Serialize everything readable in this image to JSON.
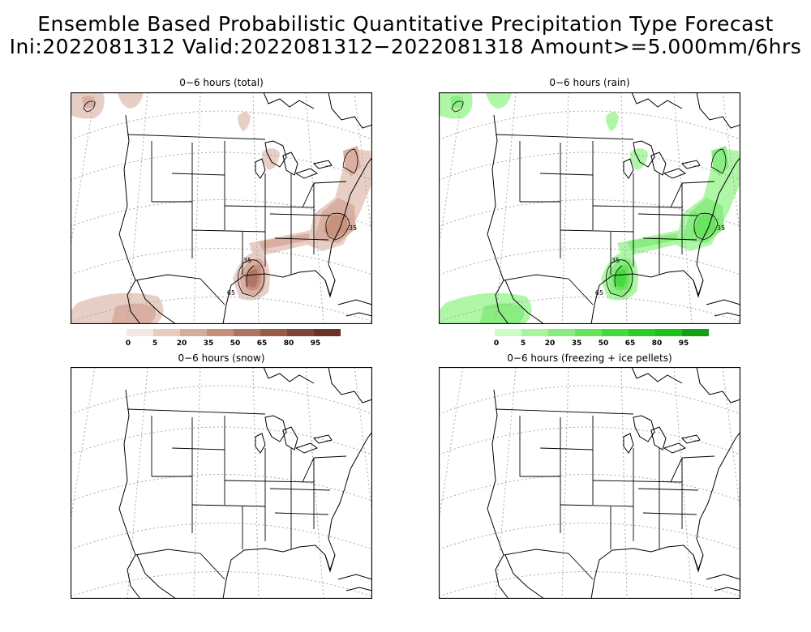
{
  "title": {
    "line1": "Ensemble Based Probabilistic Quantitative Precipitation Type Forecast",
    "line2": "Ini:2022081312 Valid:2022081312−2022081318 Amount>=5.000mm/6hrs"
  },
  "panels": [
    {
      "id": "total",
      "title": "0−6 hours (total)",
      "scheme": "brown",
      "contour_labels": [
        "35",
        "35",
        "65"
      ]
    },
    {
      "id": "rain",
      "title": "0−6 hours (rain)",
      "scheme": "green",
      "contour_labels": [
        "35",
        "35",
        "65"
      ]
    },
    {
      "id": "snow",
      "title": "0−6 hours (snow)",
      "scheme": "none"
    },
    {
      "id": "freezing",
      "title": "0−6 hours (freezing + ice pellets)",
      "scheme": "none"
    }
  ],
  "colorbars": {
    "levels": [
      "0",
      "5",
      "20",
      "35",
      "50",
      "65",
      "80",
      "95"
    ],
    "brown": [
      "#f3e8e3",
      "#e6cbc0",
      "#d6ad9c",
      "#c48e7a",
      "#b07262",
      "#9a5a4a",
      "#824436",
      "#6a3324"
    ],
    "green": [
      "#ccffc8",
      "#a8f5a0",
      "#86ec7e",
      "#66e35c",
      "#44d93e",
      "#2ccc2a",
      "#1dbf1d",
      "#129f14"
    ]
  }
}
